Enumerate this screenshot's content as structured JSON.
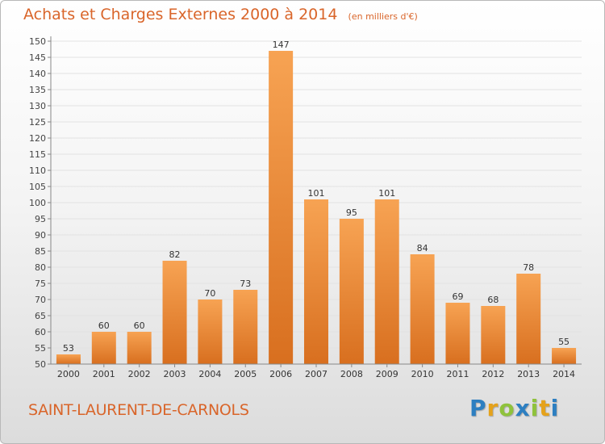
{
  "header": {
    "title": "Achats et Charges Externes 2000 à 2014",
    "subtitle": "(en milliers d'€)"
  },
  "footer": {
    "commune": "SAINT-LAURENT-DE-CARNOLS",
    "brand": {
      "p": "P",
      "r": "r",
      "o": "o",
      "x": "x",
      "i1": "i",
      "t": "t",
      "i2": "i"
    }
  },
  "colors": {
    "accent": "#d9652a",
    "bar_top": "#f7a353",
    "bar_bottom": "#d86f1f",
    "grid": "#e2e2e2",
    "axis": "#888888",
    "brand_p": "#2d7fc1",
    "brand_r": "#e5a21b",
    "brand_o": "#8fc23c",
    "brand_x": "#2d7fc1",
    "brand_i1": "#8fc23c",
    "brand_t": "#e5a21b",
    "brand_i2": "#2d7fc1"
  },
  "chart_data": {
    "type": "bar",
    "categories": [
      "2000",
      "2001",
      "2002",
      "2003",
      "2004",
      "2005",
      "2006",
      "2007",
      "2008",
      "2009",
      "2010",
      "2011",
      "2012",
      "2013",
      "2014"
    ],
    "values": [
      53,
      60,
      60,
      82,
      70,
      73,
      147,
      101,
      95,
      101,
      84,
      69,
      68,
      78,
      55
    ],
    "data_labels": [
      "53",
      "60",
      "60",
      "82",
      "70",
      "73",
      "147",
      "101",
      "95",
      "101",
      "84",
      "69",
      "68",
      "78",
      "55"
    ],
    "title": "Achats et Charges Externes 2000 à 2014",
    "xlabel": "",
    "ylabel": "",
    "ylim": [
      50,
      150
    ],
    "yticks": [
      50,
      55,
      60,
      65,
      70,
      75,
      80,
      85,
      90,
      95,
      100,
      105,
      110,
      115,
      120,
      125,
      130,
      135,
      140,
      145,
      150
    ],
    "grid": true,
    "legend": "none"
  }
}
